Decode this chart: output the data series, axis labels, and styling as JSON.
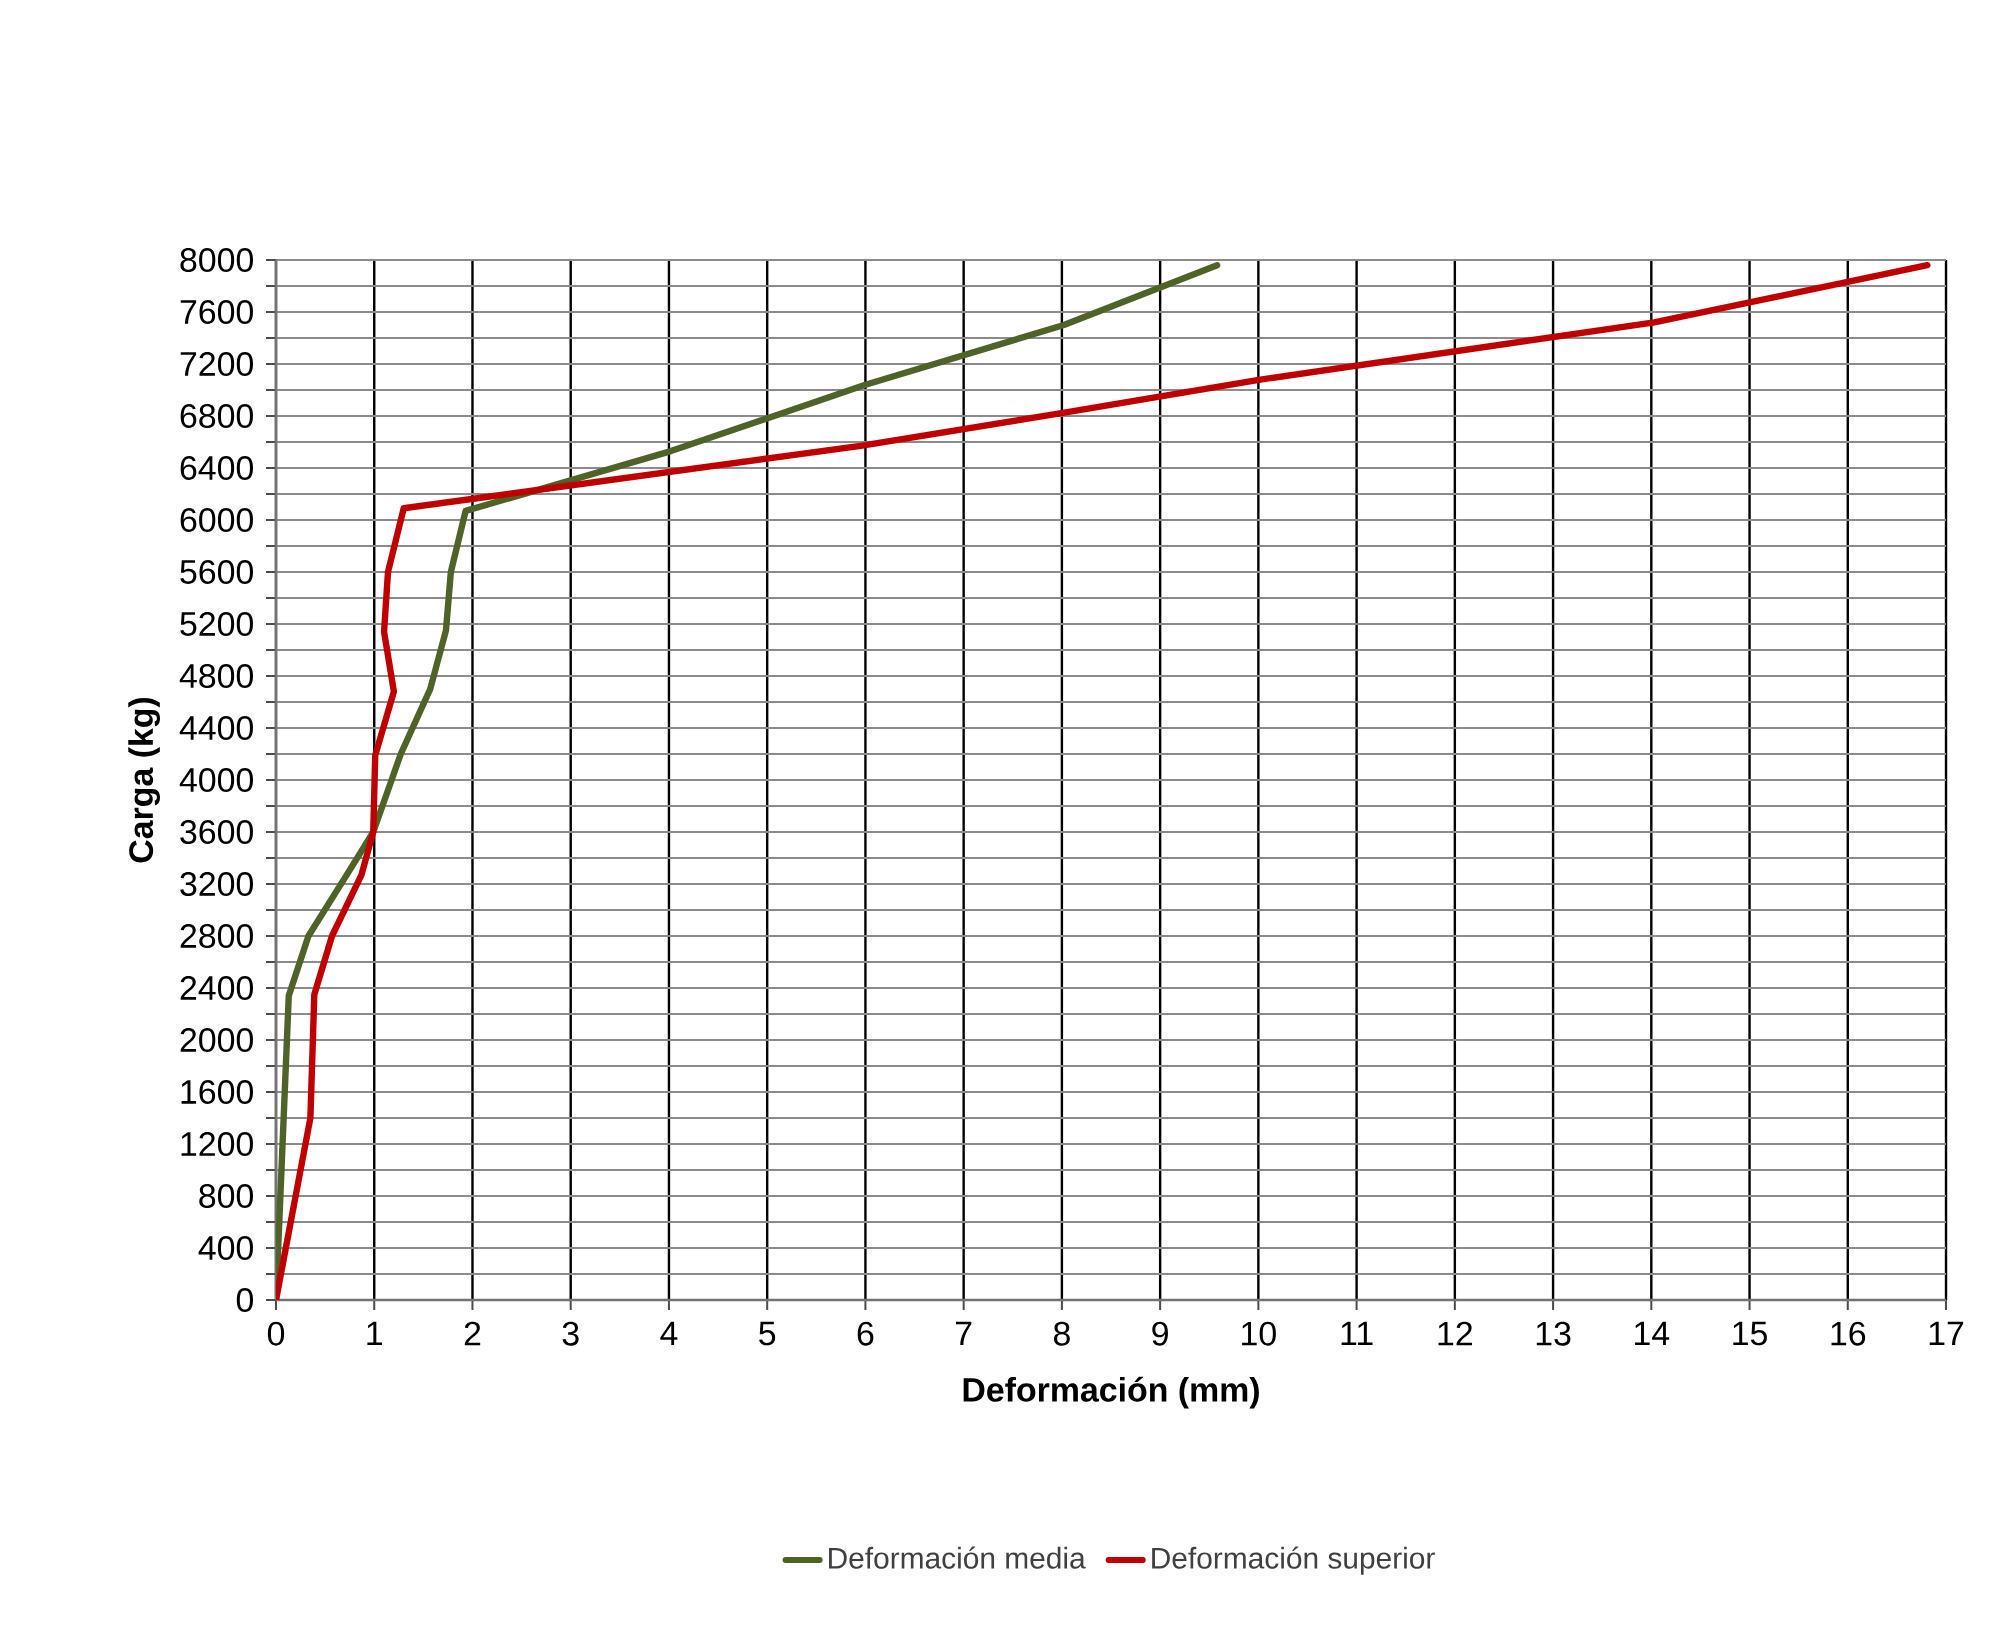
{
  "chart_data": {
    "type": "line",
    "xlabel": "Deformación (mm)",
    "ylabel": "Carga (kg)",
    "xlim": [
      0,
      17
    ],
    "xticks": [
      0,
      1,
      2,
      3,
      4,
      5,
      6,
      7,
      8,
      9,
      10,
      11,
      12,
      13,
      14,
      15,
      16,
      17
    ],
    "ylim": [
      0,
      8000
    ],
    "yticks": [
      0,
      {
        "value": 200,
        "label": null
      },
      400,
      {
        "value": 600,
        "label": null
      },
      800,
      {
        "value": 1000,
        "label": null
      },
      1200,
      {
        "value": 1400,
        "label": null
      },
      1600,
      {
        "value": 1800,
        "label": null
      },
      2000,
      {
        "value": 2200,
        "label": null
      },
      2400,
      {
        "value": 2600,
        "label": null
      },
      2800,
      {
        "value": 3000,
        "label": null
      },
      3200,
      {
        "value": 3400,
        "label": null
      },
      3600,
      {
        "value": 3800,
        "label": null
      },
      4000,
      {
        "value": 4200,
        "label": null
      },
      4400,
      {
        "value": 4600,
        "label": null
      },
      4800,
      {
        "value": 5000,
        "label": null
      },
      5200,
      {
        "value": 5400,
        "label": null
      },
      5600,
      {
        "value": 5800,
        "label": null
      },
      6000,
      {
        "value": 6200,
        "label": null
      },
      6400,
      {
        "value": 6600,
        "label": null
      },
      6800,
      {
        "value": 7000,
        "label": null
      },
      7200,
      {
        "value": 7400,
        "label": null
      },
      7600,
      {
        "value": 7800,
        "label": null
      },
      8000
    ],
    "grid": true,
    "legend": "bottom",
    "marker": "none",
    "line_style": "solid",
    "series": [
      {
        "name": "Deformación media",
        "color": "#4f6228",
        "x": [
          0,
          0.13,
          0.33,
          0.72,
          0.99,
          1.27,
          1.57,
          1.73,
          1.78,
          1.93,
          4.02,
          6,
          8.02,
          9.58
        ],
        "values": [
          0,
          2340,
          2800,
          3270,
          3600,
          4200,
          4700,
          5150,
          5600,
          6070,
          6530,
          7040,
          7500,
          7960
        ]
      },
      {
        "name": "Deformación superior",
        "color": "#c00000",
        "x": [
          0,
          0.35,
          0.39,
          0.57,
          0.87,
          0.99,
          1.01,
          1.2,
          1.1,
          1.14,
          1.3,
          5.95,
          7.98,
          10.02,
          14.03,
          16.81
        ],
        "values": [
          0,
          1400,
          2350,
          2800,
          3270,
          3600,
          4190,
          4680,
          5140,
          5600,
          6090,
          6570,
          6820,
          7080,
          7520,
          7960
        ]
      }
    ]
  }
}
